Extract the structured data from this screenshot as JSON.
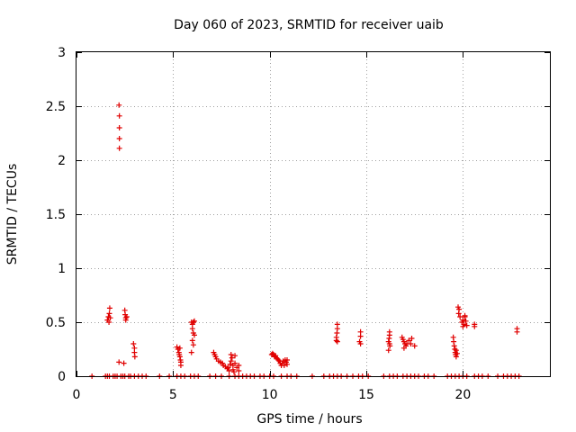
{
  "chart_data": {
    "type": "scatter",
    "title": "Day 060 of 2023, SRMTID for receiver uaib",
    "xlabel": "GPS time / hours",
    "ylabel": "SRMTID / TECUs",
    "xlim": [
      0,
      24.5
    ],
    "ylim": [
      0,
      3
    ],
    "xticks": [
      0,
      5,
      10,
      15,
      20
    ],
    "xtick_labels": [
      "0",
      "5",
      "10",
      "15",
      "20"
    ],
    "yticks": [
      0,
      0.5,
      1,
      1.5,
      2,
      2.5,
      3
    ],
    "ytick_labels": [
      "0",
      "0.5",
      "1",
      "1.5",
      "2",
      "2.5",
      "3"
    ],
    "grid": true,
    "marker": "+",
    "series": [
      {
        "name": "SRMTID",
        "color": "#e00000",
        "points": [
          [
            0.8,
            0
          ],
          [
            1.5,
            0
          ],
          [
            1.6,
            0
          ],
          [
            1.7,
            0
          ],
          [
            1.9,
            0
          ],
          [
            2.0,
            0
          ],
          [
            2.1,
            0
          ],
          [
            2.3,
            0
          ],
          [
            2.4,
            0
          ],
          [
            2.5,
            0
          ],
          [
            2.7,
            0
          ],
          [
            2.8,
            0
          ],
          [
            3.0,
            0
          ],
          [
            3.2,
            0
          ],
          [
            3.4,
            0
          ],
          [
            3.6,
            0
          ],
          [
            4.3,
            0
          ],
          [
            4.8,
            0
          ],
          [
            5.2,
            0
          ],
          [
            5.4,
            0
          ],
          [
            5.6,
            0
          ],
          [
            5.9,
            0
          ],
          [
            6.1,
            0
          ],
          [
            6.3,
            0
          ],
          [
            6.9,
            0
          ],
          [
            7.2,
            0
          ],
          [
            7.5,
            0
          ],
          [
            7.9,
            0
          ],
          [
            8.2,
            0
          ],
          [
            8.4,
            0
          ],
          [
            8.6,
            0
          ],
          [
            8.8,
            0
          ],
          [
            9.0,
            0
          ],
          [
            9.2,
            0
          ],
          [
            9.5,
            0
          ],
          [
            9.7,
            0
          ],
          [
            10.0,
            0
          ],
          [
            10.2,
            0
          ],
          [
            10.6,
            0
          ],
          [
            10.9,
            0
          ],
          [
            11.1,
            0
          ],
          [
            11.4,
            0
          ],
          [
            12.2,
            0
          ],
          [
            12.8,
            0
          ],
          [
            13.1,
            0
          ],
          [
            13.3,
            0
          ],
          [
            13.5,
            0
          ],
          [
            13.7,
            0
          ],
          [
            14.0,
            0
          ],
          [
            14.3,
            0
          ],
          [
            14.6,
            0
          ],
          [
            14.8,
            0
          ],
          [
            15.1,
            0
          ],
          [
            15.9,
            0
          ],
          [
            16.2,
            0
          ],
          [
            16.4,
            0
          ],
          [
            16.6,
            0
          ],
          [
            16.9,
            0
          ],
          [
            17.1,
            0
          ],
          [
            17.3,
            0
          ],
          [
            17.5,
            0
          ],
          [
            17.7,
            0
          ],
          [
            18.0,
            0
          ],
          [
            18.2,
            0
          ],
          [
            18.5,
            0
          ],
          [
            19.2,
            0
          ],
          [
            19.4,
            0
          ],
          [
            19.6,
            0
          ],
          [
            19.8,
            0
          ],
          [
            20.0,
            0
          ],
          [
            20.2,
            0
          ],
          [
            20.6,
            0
          ],
          [
            20.8,
            0
          ],
          [
            21.0,
            0
          ],
          [
            21.3,
            0
          ],
          [
            21.8,
            0
          ],
          [
            22.1,
            0
          ],
          [
            22.3,
            0
          ],
          [
            22.5,
            0
          ],
          [
            22.7,
            0
          ],
          [
            22.9,
            0
          ],
          [
            1.6,
            0.52
          ],
          [
            1.65,
            0.55
          ],
          [
            1.7,
            0.58
          ],
          [
            1.72,
            0.63
          ],
          [
            1.75,
            0.54
          ],
          [
            1.68,
            0.5
          ],
          [
            2.2,
            2.51
          ],
          [
            2.22,
            2.41
          ],
          [
            2.22,
            2.3
          ],
          [
            2.22,
            2.2
          ],
          [
            2.22,
            2.11
          ],
          [
            2.2,
            0.13
          ],
          [
            2.45,
            0.12
          ],
          [
            2.5,
            0.61
          ],
          [
            2.52,
            0.57
          ],
          [
            2.55,
            0.54
          ],
          [
            2.55,
            0.52
          ],
          [
            2.6,
            0.55
          ],
          [
            2.95,
            0.3
          ],
          [
            3.0,
            0.26
          ],
          [
            3.0,
            0.22
          ],
          [
            3.02,
            0.18
          ],
          [
            5.2,
            0.27
          ],
          [
            5.25,
            0.25
          ],
          [
            5.3,
            0.22
          ],
          [
            5.32,
            0.2
          ],
          [
            5.35,
            0.18
          ],
          [
            5.38,
            0.15
          ],
          [
            5.4,
            0.13
          ],
          [
            5.35,
            0.26
          ],
          [
            5.4,
            0.1
          ],
          [
            5.95,
            0.5
          ],
          [
            6.0,
            0.48
          ],
          [
            6.05,
            0.5
          ],
          [
            6.0,
            0.44
          ],
          [
            6.05,
            0.4
          ],
          [
            6.1,
            0.38
          ],
          [
            6.0,
            0.33
          ],
          [
            6.05,
            0.29
          ],
          [
            5.95,
            0.22
          ],
          [
            6.1,
            0.51
          ],
          [
            7.1,
            0.22
          ],
          [
            7.15,
            0.2
          ],
          [
            7.2,
            0.18
          ],
          [
            7.25,
            0.16
          ],
          [
            7.35,
            0.14
          ],
          [
            7.45,
            0.13
          ],
          [
            7.55,
            0.12
          ],
          [
            7.6,
            0.1
          ],
          [
            7.7,
            0.09
          ],
          [
            7.8,
            0.07
          ],
          [
            7.85,
            0.08
          ],
          [
            7.9,
            0.05
          ],
          [
            7.95,
            0.11
          ],
          [
            8.0,
            0.14
          ],
          [
            8.0,
            0.2
          ],
          [
            8.05,
            0.17
          ],
          [
            8.1,
            0.1
          ],
          [
            8.1,
            0.06
          ],
          [
            8.15,
            0.04
          ],
          [
            8.2,
            0.12
          ],
          [
            8.3,
            0.08
          ],
          [
            8.4,
            0.05
          ],
          [
            8.4,
            0.1
          ],
          [
            8.2,
            0.19
          ],
          [
            10.1,
            0.2
          ],
          [
            10.15,
            0.21
          ],
          [
            10.2,
            0.2
          ],
          [
            10.25,
            0.18
          ],
          [
            10.3,
            0.19
          ],
          [
            10.35,
            0.17
          ],
          [
            10.4,
            0.16
          ],
          [
            10.45,
            0.15
          ],
          [
            10.5,
            0.14
          ],
          [
            10.55,
            0.12
          ],
          [
            10.6,
            0.1
          ],
          [
            10.65,
            0.12
          ],
          [
            10.7,
            0.14
          ],
          [
            10.75,
            0.1
          ],
          [
            10.8,
            0.15
          ],
          [
            10.85,
            0.13
          ],
          [
            10.9,
            0.11
          ],
          [
            10.9,
            0.15
          ],
          [
            13.5,
            0.48
          ],
          [
            13.5,
            0.44
          ],
          [
            13.48,
            0.4
          ],
          [
            13.45,
            0.36
          ],
          [
            13.45,
            0.33
          ],
          [
            13.5,
            0.32
          ],
          [
            14.7,
            0.41
          ],
          [
            14.7,
            0.37
          ],
          [
            14.65,
            0.32
          ],
          [
            14.7,
            0.3
          ],
          [
            16.2,
            0.41
          ],
          [
            16.2,
            0.38
          ],
          [
            16.18,
            0.35
          ],
          [
            16.15,
            0.32
          ],
          [
            16.2,
            0.3
          ],
          [
            16.22,
            0.28
          ],
          [
            16.15,
            0.24
          ],
          [
            16.85,
            0.36
          ],
          [
            16.9,
            0.34
          ],
          [
            16.95,
            0.32
          ],
          [
            17.0,
            0.3
          ],
          [
            17.05,
            0.28
          ],
          [
            16.95,
            0.26
          ],
          [
            17.1,
            0.3
          ],
          [
            17.2,
            0.33
          ],
          [
            17.35,
            0.35
          ],
          [
            17.3,
            0.3
          ],
          [
            17.5,
            0.28
          ],
          [
            19.5,
            0.36
          ],
          [
            19.52,
            0.32
          ],
          [
            19.55,
            0.28
          ],
          [
            19.58,
            0.25
          ],
          [
            19.6,
            0.22
          ],
          [
            19.62,
            0.2
          ],
          [
            19.65,
            0.18
          ],
          [
            19.7,
            0.21
          ],
          [
            19.65,
            0.24
          ],
          [
            19.75,
            0.64
          ],
          [
            19.8,
            0.62
          ],
          [
            19.78,
            0.58
          ],
          [
            19.85,
            0.55
          ],
          [
            19.95,
            0.5
          ],
          [
            20.0,
            0.52
          ],
          [
            20.05,
            0.48
          ],
          [
            20.1,
            0.55
          ],
          [
            20.15,
            0.51
          ],
          [
            20.2,
            0.47
          ],
          [
            20.0,
            0.46
          ],
          [
            20.1,
            0.56
          ],
          [
            20.6,
            0.48
          ],
          [
            20.6,
            0.46
          ],
          [
            22.8,
            0.44
          ],
          [
            22.8,
            0.41
          ]
        ]
      }
    ]
  }
}
